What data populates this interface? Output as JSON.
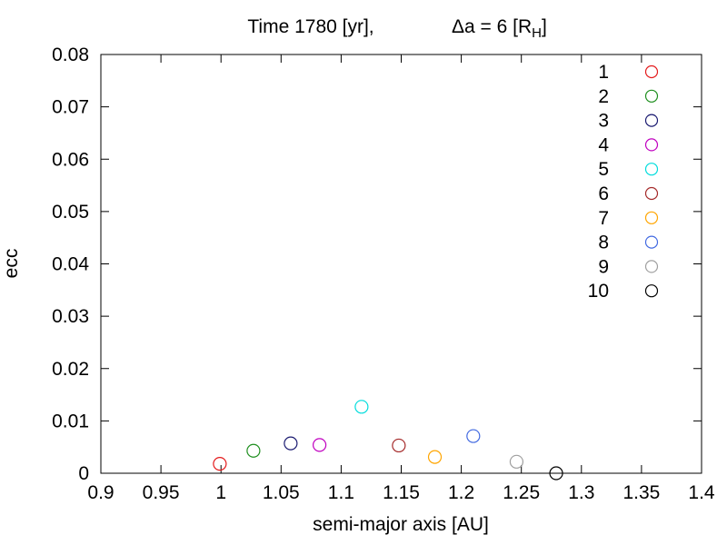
{
  "chart_data": {
    "type": "scatter",
    "title_left": "Time 1780 [yr],",
    "title_right_prefix": "Δa = 6 [R",
    "title_right_sub": "H",
    "title_right_suffix": "]",
    "xlabel": "semi-major axis [AU]",
    "ylabel": "ecc",
    "xlim": [
      0.9,
      1.4
    ],
    "ylim": [
      0,
      0.08
    ],
    "x_ticks": [
      {
        "value": 0.9,
        "label": "0.9"
      },
      {
        "value": 0.95,
        "label": "0.95"
      },
      {
        "value": 1.0,
        "label": "1"
      },
      {
        "value": 1.05,
        "label": "1.05"
      },
      {
        "value": 1.1,
        "label": "1.1"
      },
      {
        "value": 1.15,
        "label": "1.15"
      },
      {
        "value": 1.2,
        "label": "1.2"
      },
      {
        "value": 1.25,
        "label": "1.25"
      },
      {
        "value": 1.3,
        "label": "1.3"
      },
      {
        "value": 1.35,
        "label": "1.35"
      },
      {
        "value": 1.4,
        "label": "1.4"
      }
    ],
    "y_ticks": [
      {
        "value": 0,
        "label": "0"
      },
      {
        "value": 0.01,
        "label": "0.01"
      },
      {
        "value": 0.02,
        "label": "0.02"
      },
      {
        "value": 0.03,
        "label": "0.03"
      },
      {
        "value": 0.04,
        "label": "0.04"
      },
      {
        "value": 0.05,
        "label": "0.05"
      },
      {
        "value": 0.06,
        "label": "0.06"
      },
      {
        "value": 0.07,
        "label": "0.07"
      },
      {
        "value": 0.08,
        "label": "0.08"
      }
    ],
    "grid": false,
    "legend_position": "top-right",
    "series": [
      {
        "name": "1",
        "color": "#e41a1c",
        "x": [
          0.999
        ],
        "y": [
          0.0018
        ]
      },
      {
        "name": "2",
        "color": "#1f8f1f",
        "x": [
          1.027
        ],
        "y": [
          0.0043
        ]
      },
      {
        "name": "3",
        "color": "#191970",
        "x": [
          1.058
        ],
        "y": [
          0.0057
        ]
      },
      {
        "name": "4",
        "color": "#c000c0",
        "x": [
          1.082
        ],
        "y": [
          0.0054
        ]
      },
      {
        "name": "5",
        "color": "#00dcdc",
        "x": [
          1.117
        ],
        "y": [
          0.0127
        ]
      },
      {
        "name": "6",
        "color": "#a52a2a",
        "x": [
          1.148
        ],
        "y": [
          0.0053
        ]
      },
      {
        "name": "7",
        "color": "#ffa500",
        "x": [
          1.178
        ],
        "y": [
          0.0031
        ]
      },
      {
        "name": "8",
        "color": "#4169e1",
        "x": [
          1.21
        ],
        "y": [
          0.0071
        ]
      },
      {
        "name": "9",
        "color": "#a0a0a0",
        "x": [
          1.246
        ],
        "y": [
          0.0022
        ]
      },
      {
        "name": "10",
        "color": "#000000",
        "x": [
          1.279
        ],
        "y": [
          0.0
        ]
      }
    ]
  }
}
